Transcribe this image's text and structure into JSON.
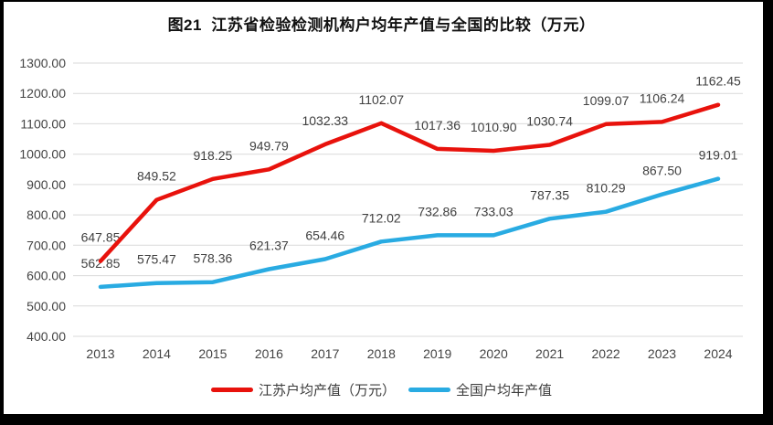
{
  "title": "图21  江苏省检验检测机构户均年产值与全国的比较（万元）",
  "chart_data": {
    "type": "line",
    "categories": [
      "2013",
      "2014",
      "2015",
      "2016",
      "2017",
      "2018",
      "2019",
      "2020",
      "2021",
      "2022",
      "2023",
      "2024"
    ],
    "series": [
      {
        "name": "江苏户均产值（万元）",
        "color": "#e8120c",
        "values": [
          647.85,
          849.52,
          918.25,
          949.79,
          1032.33,
          1102.07,
          1017.36,
          1010.9,
          1030.74,
          1099.07,
          1106.24,
          1162.45
        ]
      },
      {
        "name": "全国户均年产值",
        "color": "#29abe2",
        "values": [
          562.85,
          575.47,
          578.36,
          621.37,
          654.46,
          712.02,
          732.86,
          733.03,
          787.35,
          810.29,
          867.5,
          919.01
        ]
      }
    ],
    "ylim": [
      400,
      1300
    ],
    "ytick_step": 100,
    "ytick_labels": [
      "400.00",
      "500.00",
      "600.00",
      "700.00",
      "800.00",
      "900.00",
      "1000.00",
      "1100.00",
      "1200.00",
      "1300.00"
    ],
    "grid": true,
    "data_labels": true,
    "legend_position": "bottom",
    "colors": {
      "gridline": "#d9d9d9",
      "axis_text": "#444444",
      "data_label_text": "#404040",
      "title_text": "#111111",
      "frame": "#000000",
      "background": "#ffffff"
    }
  }
}
